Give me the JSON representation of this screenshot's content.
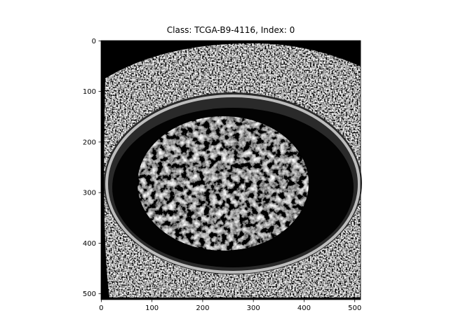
{
  "chart_data": {
    "type": "image",
    "title": "Class: TCGA-B9-4116, Index: 0",
    "xlim": [
      -0.5,
      511.5
    ],
    "ylim": [
      511.5,
      -0.5
    ],
    "xticks": [
      0,
      100,
      200,
      300,
      400,
      500
    ],
    "yticks": [
      0,
      100,
      200,
      300,
      400,
      500
    ]
  }
}
